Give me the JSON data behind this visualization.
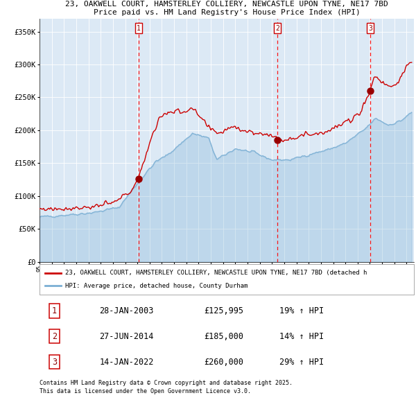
{
  "title_line1": "23, OAKWELL COURT, HAMSTERLEY COLLIERY, NEWCASTLE UPON TYNE, NE17 7BD",
  "title_line2": "Price paid vs. HM Land Registry's House Price Index (HPI)",
  "plot_bg_color": "#dce9f5",
  "red_line_color": "#cc0000",
  "blue_line_color": "#7bafd4",
  "sale_date_floats": [
    2003.08,
    2014.46,
    2022.04
  ],
  "sale_prices": [
    125995,
    185000,
    260000
  ],
  "sale_labels": [
    "1",
    "2",
    "3"
  ],
  "ylim": [
    0,
    370000
  ],
  "yticks": [
    0,
    50000,
    100000,
    150000,
    200000,
    250000,
    300000,
    350000
  ],
  "ytick_labels": [
    "£0",
    "£50K",
    "£100K",
    "£150K",
    "£200K",
    "£250K",
    "£300K",
    "£350K"
  ],
  "xstart": 1995,
  "xend": 2025.6,
  "legend_line1": "23, OAKWELL COURT, HAMSTERLEY COLLIERY, NEWCASTLE UPON TYNE, NE17 7BD (detached h",
  "legend_line2": "HPI: Average price, detached house, County Durham",
  "table_rows": [
    {
      "num": "1",
      "date": "28-JAN-2003",
      "price": "£125,995",
      "change": "19% ↑ HPI"
    },
    {
      "num": "2",
      "date": "27-JUN-2014",
      "price": "£185,000",
      "change": "14% ↑ HPI"
    },
    {
      "num": "3",
      "date": "14-JAN-2022",
      "price": "£260,000",
      "change": "29% ↑ HPI"
    }
  ],
  "footer": "Contains HM Land Registry data © Crown copyright and database right 2025.\nThis data is licensed under the Open Government Licence v3.0.",
  "hpi_anchors_x": [
    1995.0,
    1997.0,
    1999.5,
    2001.5,
    2003.1,
    2004.5,
    2005.5,
    2007.5,
    2008.8,
    2009.5,
    2011.0,
    2012.5,
    2014.0,
    2015.5,
    2017.0,
    2018.5,
    2020.0,
    2021.5,
    2022.5,
    2023.5,
    2024.5,
    2025.5
  ],
  "hpi_anchors_y": [
    68000,
    71000,
    75000,
    83000,
    122000,
    152000,
    163000,
    195000,
    188000,
    155000,
    172000,
    166000,
    155000,
    155000,
    163000,
    170000,
    180000,
    200000,
    218000,
    208000,
    214000,
    228000
  ],
  "prop_anchors_x": [
    1995.0,
    1997.0,
    1999.0,
    2001.0,
    2002.5,
    2003.08,
    2003.6,
    2004.2,
    2004.8,
    2005.5,
    2006.5,
    2007.5,
    2008.2,
    2009.0,
    2009.8,
    2010.8,
    2011.8,
    2012.8,
    2013.8,
    2014.5,
    2015.3,
    2016.2,
    2017.0,
    2017.8,
    2018.6,
    2019.5,
    2020.5,
    2021.2,
    2022.04,
    2022.4,
    2022.9,
    2023.3,
    2023.9,
    2024.5,
    2025.3
  ],
  "prop_anchors_y": [
    80000,
    81000,
    83000,
    89000,
    108000,
    125995,
    158000,
    192000,
    218000,
    228000,
    228000,
    232000,
    218000,
    200000,
    196000,
    207000,
    199000,
    195000,
    194000,
    185000,
    187000,
    191000,
    194000,
    196000,
    199000,
    207000,
    216000,
    228000,
    260000,
    284000,
    274000,
    270000,
    267000,
    278000,
    305000
  ]
}
